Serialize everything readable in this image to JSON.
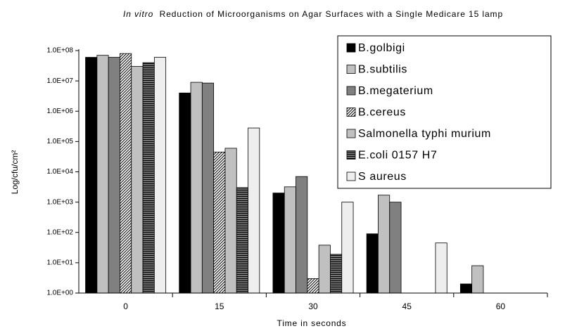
{
  "chart_data": {
    "type": "bar",
    "title": {
      "italic": "In vitro",
      "text": "Reduction of  Microorganisms on  Agar Surfaces with a Single Medicare 15 lamp"
    },
    "x_label": "Time in seconds",
    "y_label": "Log/cfu/cm²",
    "categories": [
      "0",
      "15",
      "30",
      "45",
      "60"
    ],
    "log_scale": true,
    "ylim": [
      1,
      100000000
    ],
    "yticks": [
      {
        "value": 1,
        "label": "1.0E+00"
      },
      {
        "value": 10,
        "label": "1.0E+01"
      },
      {
        "value": 100,
        "label": "1.0E+02"
      },
      {
        "value": 1000,
        "label": "1.0E+03"
      },
      {
        "value": 10000,
        "label": "1.0E+04"
      },
      {
        "value": 100000,
        "label": "1.0E+05"
      },
      {
        "value": 1000000,
        "label": "1.0E+06"
      },
      {
        "value": 10000000,
        "label": "1.0E+07"
      },
      {
        "value": 100000000,
        "label": "1.0E+08"
      }
    ],
    "grid": false,
    "legend": "upper right",
    "series": [
      {
        "name": "B.golbigi",
        "color": "#000000",
        "values": [
          60000000,
          4000000,
          2000,
          90,
          2
        ]
      },
      {
        "name": "B.subtilis",
        "color": "#c0c0c0",
        "values": [
          70000000,
          9000000,
          3200,
          1700,
          8
        ]
      },
      {
        "name": "B.megaterium",
        "color": "#808080",
        "values": [
          60000000,
          8500000,
          7000,
          1000,
          null
        ]
      },
      {
        "name": "B.cereus",
        "color": "#ffffff",
        "hatch": "diagonal",
        "values": [
          80000000,
          45000,
          3,
          null,
          null
        ]
      },
      {
        "name": "Salmonella typhi murium",
        "color": "#c0c0c0",
        "values": [
          30000000,
          60000,
          38,
          null,
          null
        ]
      },
      {
        "name": "E.coli 0157 H7",
        "color": "#707070",
        "hatch": "horizontal",
        "values": [
          40000000,
          3000,
          19,
          null,
          null
        ]
      },
      {
        "name": "S aureus",
        "color": "#eeeeee",
        "values": [
          60000000,
          280000,
          1000,
          45,
          null
        ]
      }
    ]
  }
}
